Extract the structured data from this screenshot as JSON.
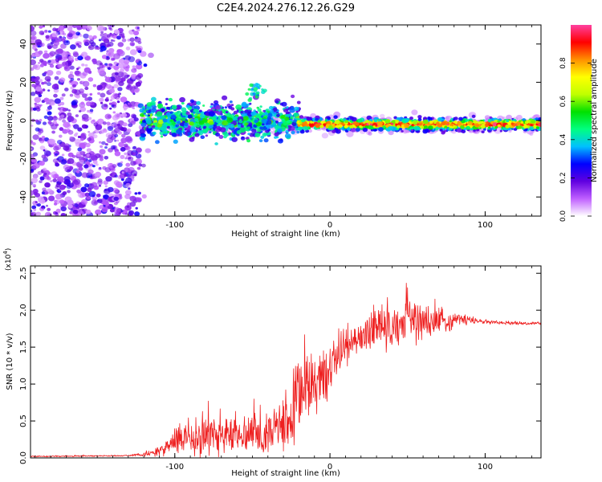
{
  "title": "C2E4.2024.276.12.26.G29",
  "chart_data": [
    {
      "type": "heatmap",
      "title": "C2E4.2024.276.12.26.G29",
      "xlabel": "Height of straight line (km)",
      "ylabel": "Frequency (Hz)",
      "xlim": [
        -193,
        136
      ],
      "ylim": [
        -50,
        50
      ],
      "x_ticks": [
        -100,
        0,
        100
      ],
      "x_tick_labels": [
        "-100",
        "0",
        "100"
      ],
      "y_ticks": [
        -40,
        -20,
        0,
        20,
        40
      ],
      "y_tick_labels": [
        "-40",
        "-20",
        "0",
        "20",
        "40"
      ],
      "colorbar": {
        "label": "Normalized spectral amplitude",
        "range": [
          0,
          1
        ],
        "ticks": [
          0.0,
          0.2,
          0.4,
          0.6,
          0.8
        ],
        "tick_labels": [
          "0.0",
          "0.2",
          "0.4",
          "0.6",
          "0.8"
        ],
        "colors": [
          "#ffffff",
          "#c060ff",
          "#6000e0",
          "#0000ff",
          "#00c0ff",
          "#00ff80",
          "#00e000",
          "#c0ff00",
          "#ffff00",
          "#ff9000",
          "#ff0000",
          "#ff40a0"
        ]
      },
      "regions": [
        {
          "name": "noise",
          "x_range": [
            -193,
            -122
          ],
          "freq_range": [
            -50,
            50
          ],
          "amplitude": 0.12
        },
        {
          "name": "diffuse",
          "x_range": [
            -122,
            -20
          ],
          "freq_center": 0,
          "freq_halfwidth": 8,
          "amplitude": 0.4
        },
        {
          "name": "ridge",
          "x_range": [
            -20,
            136
          ],
          "freq_center": -2,
          "freq_halfwidth": 3,
          "amplitude": 0.85
        }
      ]
    },
    {
      "type": "line",
      "xlabel": "Height of straight line (km)",
      "ylabel": "SNR (10 * v/v)",
      "y_scale_label": "(x10",
      "y_scale_exp": "4",
      "y_scale_close": ")",
      "xlim": [
        -193,
        136
      ],
      "ylim": [
        0,
        2.6
      ],
      "x_ticks": [
        -100,
        0,
        100
      ],
      "x_tick_labels": [
        "-100",
        "0",
        "100"
      ],
      "y_ticks": [
        0.0,
        0.5,
        1.0,
        1.5,
        2.0,
        2.5
      ],
      "y_tick_labels": [
        "0.0",
        "0.5",
        "1.0",
        "1.5",
        "2.0",
        "2.5"
      ],
      "series": [
        {
          "name": "SNR",
          "color": "#ee2020",
          "x": [
            -193,
            -130,
            -118,
            -105,
            -95,
            -80,
            -60,
            -40,
            -28,
            -22,
            -18,
            -12,
            -5,
            0,
            5,
            12,
            20,
            30,
            45,
            60,
            75,
            85,
            95,
            110,
            136
          ],
          "envelope": [
            0.02,
            0.03,
            0.05,
            0.15,
            0.25,
            0.3,
            0.32,
            0.35,
            0.45,
            0.7,
            0.85,
            1.0,
            1.05,
            1.2,
            1.4,
            1.55,
            1.65,
            1.75,
            1.8,
            1.85,
            1.85,
            1.88,
            1.85,
            1.83,
            1.82
          ],
          "amplitude": [
            0.01,
            0.01,
            0.04,
            0.15,
            0.3,
            0.35,
            0.3,
            0.3,
            0.4,
            0.7,
            0.6,
            0.5,
            0.5,
            0.4,
            0.3,
            0.35,
            0.3,
            0.35,
            0.4,
            0.3,
            0.2,
            0.1,
            0.04,
            0.03,
            0.02
          ]
        }
      ]
    }
  ]
}
